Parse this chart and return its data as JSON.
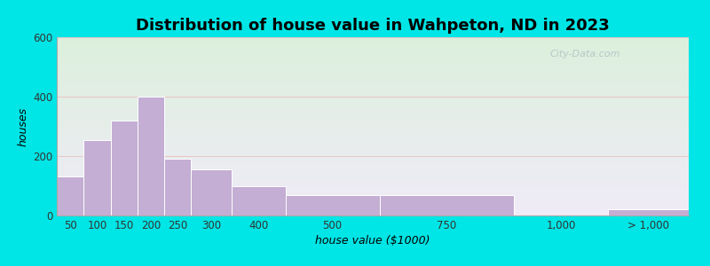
{
  "title": "Distribution of house value in Wahpeton, ND in 2023",
  "xlabel": "house value ($1000)",
  "ylabel": "houses",
  "bar_color": "#c4aed4",
  "bar_edge_color": "#ffffff",
  "background_outer": "#00e5e5",
  "ylim": [
    0,
    600
  ],
  "yticks": [
    0,
    200,
    400,
    600
  ],
  "tick_labels": [
    "50",
    "100",
    "150",
    "200",
    "250",
    "300",
    "400",
    "500",
    "750",
    "1,000",
    "> 1,000"
  ],
  "bin_edges": [
    25,
    75,
    125,
    175,
    225,
    275,
    350,
    450,
    625,
    875,
    1050,
    1200
  ],
  "values": [
    130,
    255,
    320,
    400,
    190,
    155,
    100,
    70,
    70,
    0,
    20
  ],
  "title_fontsize": 13,
  "label_fontsize": 9,
  "tick_fontsize": 8.5,
  "grid_color": "#e8c8c8",
  "watermark": "City-Data.com"
}
